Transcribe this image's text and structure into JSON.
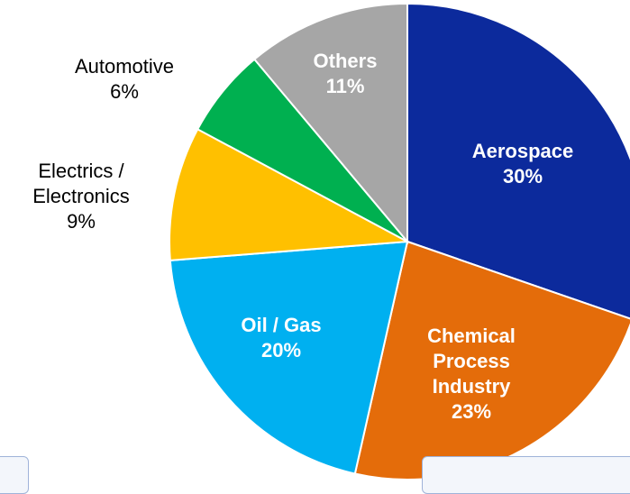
{
  "chart_data": {
    "type": "pie",
    "categories": [
      "Aerospace",
      "Chemical Process Industry",
      "Oil / Gas",
      "Electrics / Electronics",
      "Automotive",
      "Others"
    ],
    "values": [
      30,
      23,
      20,
      9,
      6,
      11
    ],
    "value_labels": [
      "30%",
      "23%",
      "20%",
      "9%",
      "6%",
      "11%"
    ],
    "colors": [
      "#0c2a9c",
      "#e46c0a",
      "#00b0f0",
      "#ffc000",
      "#00b050",
      "#a6a6a6"
    ]
  }
}
